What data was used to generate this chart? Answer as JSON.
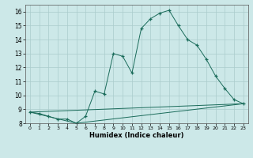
{
  "title": "",
  "xlabel": "Humidex (Indice chaleur)",
  "background_color": "#cce8e8",
  "grid_color": "#aacccc",
  "line_color": "#1a6b5a",
  "xlim": [
    -0.5,
    23.5
  ],
  "ylim": [
    8,
    16.5
  ],
  "ytick_min": 8,
  "ytick_max": 16,
  "xticks": [
    0,
    1,
    2,
    3,
    4,
    5,
    6,
    7,
    8,
    9,
    10,
    11,
    12,
    13,
    14,
    15,
    16,
    17,
    18,
    19,
    20,
    21,
    22,
    23
  ],
  "yticks": [
    8,
    9,
    10,
    11,
    12,
    13,
    14,
    15,
    16
  ],
  "line1_x": [
    0,
    1,
    2,
    3,
    4,
    5,
    6,
    7,
    8,
    9,
    10,
    11,
    12,
    13,
    14,
    15,
    16,
    17,
    18,
    19,
    20,
    21,
    22,
    23
  ],
  "line1_y": [
    8.8,
    8.7,
    8.5,
    8.3,
    8.3,
    8.0,
    8.5,
    10.3,
    10.1,
    13.0,
    12.8,
    11.6,
    14.8,
    15.5,
    15.9,
    16.1,
    15.0,
    14.0,
    13.6,
    12.6,
    11.4,
    10.5,
    9.7,
    9.4
  ],
  "line2_x": [
    0,
    23
  ],
  "line2_y": [
    8.8,
    9.4
  ],
  "line3_x": [
    0,
    5,
    23
  ],
  "line3_y": [
    8.8,
    8.0,
    9.4
  ]
}
